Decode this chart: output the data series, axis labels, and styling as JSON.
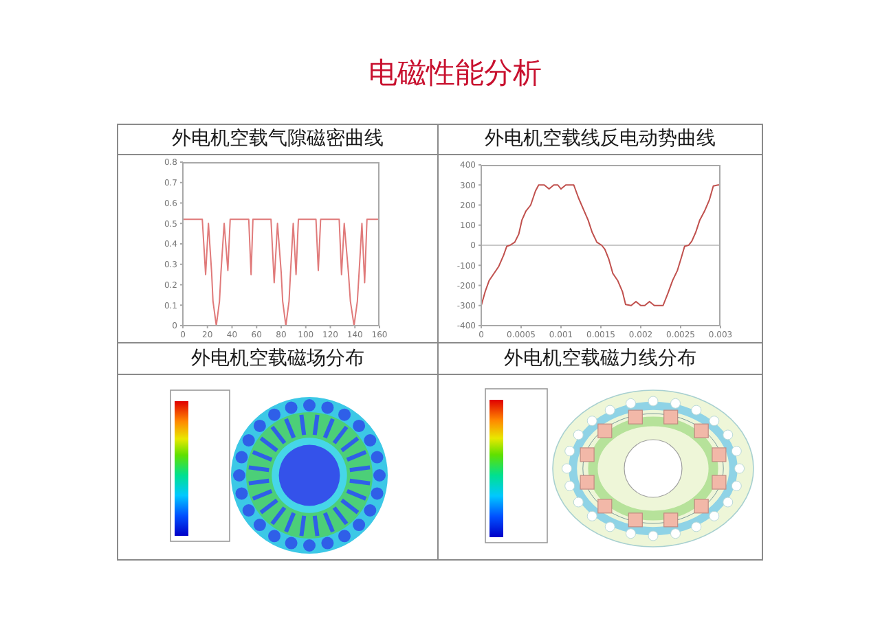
{
  "chart_data": [
    {
      "type": "other",
      "title": "电磁性能分析"
    },
    {
      "type": "line",
      "title": "外电机空载气隙磁密曲线",
      "x": [
        0,
        15.8,
        18.5,
        20.8,
        23.4,
        24.5,
        27.2,
        29.8,
        31,
        33.6,
        36.6,
        38.5,
        53.6,
        55.5,
        57,
        71.7,
        74.3,
        77,
        80,
        81.2,
        83.8,
        86.4,
        87.6,
        89.8,
        92.1,
        94,
        108.3,
        110.2,
        112.1,
        127.2,
        129.1,
        131.3,
        134.7,
        136.3,
        139.3,
        142,
        143.4,
        145.7,
        147.9,
        149.8,
        160
      ],
      "values": [
        0.52,
        0.52,
        0.25,
        0.5,
        0.26,
        0.12,
        0,
        0.12,
        0.26,
        0.5,
        0.27,
        0.52,
        0.52,
        0.25,
        0.52,
        0.52,
        0.21,
        0.5,
        0.26,
        0.12,
        0,
        0.12,
        0.26,
        0.5,
        0.25,
        0.52,
        0.52,
        0.27,
        0.52,
        0.52,
        0.25,
        0.5,
        0.26,
        0.12,
        0,
        0.12,
        0.26,
        0.5,
        0.21,
        0.52,
        0.52
      ],
      "color": "#e07a7a",
      "xlim": [
        0,
        160
      ],
      "xticks": [
        0,
        20,
        40,
        60,
        80,
        100,
        120,
        140,
        160
      ],
      "ylim": [
        0,
        0.8
      ],
      "yticks": [
        0,
        0.1,
        0.2,
        0.3,
        0.4,
        0.5,
        0.6,
        0.7,
        0.8
      ]
    },
    {
      "type": "line",
      "title": "外电机空载线反电动势曲线",
      "x": [
        0,
        5e-05,
        0.0001,
        0.00016,
        0.00022,
        0.00028,
        0.00032,
        0.00036,
        0.00042,
        0.00047,
        0.00051,
        0.00056,
        0.00062,
        0.00068,
        0.00072,
        0.00079,
        0.00085,
        0.00091,
        0.00096,
        0.001,
        0.00106,
        0.00116,
        0.00122,
        0.00128,
        0.00134,
        0.00139,
        0.00145,
        0.00151,
        0.00155,
        0.0016,
        0.00165,
        0.00171,
        0.00177,
        0.00181,
        0.00188,
        0.00194,
        0.002,
        0.00205,
        0.00211,
        0.00217,
        0.00228,
        0.00234,
        0.0024,
        0.00246,
        0.00251,
        0.00255,
        0.0026,
        0.00264,
        0.00269,
        0.00274,
        0.0028,
        0.00286,
        0.00291,
        0.00297,
        0.003
      ],
      "values": [
        -300,
        -230,
        -175,
        -140,
        -105,
        -50,
        -5,
        0,
        15,
        55,
        125,
        170,
        200,
        270,
        300,
        300,
        280,
        300,
        300,
        280,
        300,
        300,
        235,
        180,
        125,
        65,
        15,
        0,
        -20,
        -70,
        -140,
        -175,
        -230,
        -295,
        -300,
        -280,
        -300,
        -300,
        -280,
        -300,
        -300,
        -240,
        -175,
        -125,
        -60,
        -5,
        0,
        20,
        65,
        125,
        170,
        225,
        295,
        300,
        300
      ],
      "color": "#c0504d",
      "xlim": [
        0,
        0.003
      ],
      "xticks": [
        0,
        0.0005,
        0.001,
        0.0015,
        0.002,
        0.0025,
        0.003
      ],
      "ylim": [
        -400,
        400
      ],
      "yticks": [
        -400,
        -300,
        -200,
        -100,
        0,
        100,
        200,
        300,
        400
      ],
      "ref_lines": [
        {
          "axis": "y",
          "value": 0,
          "color": "#c8c8c8"
        }
      ]
    },
    {
      "type": "other",
      "title": "外电机空载磁场分布"
    },
    {
      "type": "other",
      "title": "外电机空载磁力线分布"
    }
  ]
}
